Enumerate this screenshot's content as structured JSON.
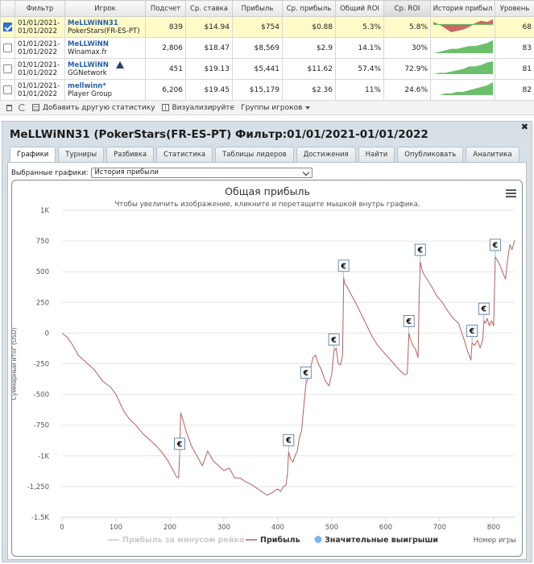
{
  "stats": {
    "headers": [
      "",
      "Фильтр",
      "Игрок",
      "Подсчет",
      "Ср. ставка",
      "Прибыль",
      "Ср. прибыль",
      "Общий ROI",
      "Ср. ROI",
      "История прибыл",
      "Уровень"
    ],
    "rows": [
      {
        "checked": true,
        "filter1": "01/01/2021-",
        "filter2": "01/01/2022",
        "name": "MeLLWiNN31",
        "site": "PokerStars(FR-ES-PT)",
        "count": "839",
        "avg_stake": "$14.94",
        "profit": "$754",
        "avg_profit": "$0.88",
        "total_roi": "5.3%",
        "avg_roi": "5.8%",
        "level": "68"
      },
      {
        "checked": false,
        "filter1": "01/01/2021-",
        "filter2": "01/01/2022",
        "name": "MeLLWiNN",
        "site": "Winamax.fr",
        "count": "2,806",
        "avg_stake": "$18.47",
        "profit": "$8,569",
        "avg_profit": "$2.9",
        "total_roi": "14.1%",
        "avg_roi": "30%",
        "level": "83"
      },
      {
        "checked": false,
        "filter1": "01/01/2021-",
        "filter2": "01/01/2022",
        "name": "MeLLWiNN",
        "site": "GGNetwork",
        "count": "451",
        "avg_stake": "$19.13",
        "profit": "$5,441",
        "avg_profit": "$11.62",
        "total_roi": "57.4%",
        "avg_roi": "72.9%",
        "level": "81"
      },
      {
        "checked": false,
        "filter1": "01/01/2021-",
        "filter2": "01/01/2022",
        "name": "mellwinn*",
        "site": "Player Group",
        "count": "6,206",
        "avg_stake": "$19.45",
        "profit": "$15,179",
        "avg_profit": "$2.36",
        "total_roi": "11%",
        "avg_roi": "24.6%",
        "level": "82"
      }
    ]
  },
  "toolbar": {
    "add_stat": "Добавить другую статистику",
    "visualize": "Визуализируйте",
    "groups": "Группы игроков"
  },
  "panel": {
    "title": "MeLLWiNN31 (PokerStars(FR-ES-PT) Фильтр:01/01/2021-01/01/2022",
    "tabs": [
      "Графики",
      "Турниры",
      "Разбивка",
      "Статистика",
      "Таблицы лидеров",
      "Достижения",
      "Найти",
      "Опубликовать",
      "Аналитика"
    ],
    "selected_label": "Выбранные графики:",
    "selected_value": "История прибыли"
  },
  "colors": {
    "profit_line": "#b26060",
    "rake_line": "#cccccc",
    "big_win_marker": "#7cb5ec",
    "spark_fill": "#5cb85c",
    "spark_neg": "#c45a5a"
  },
  "chart_data": {
    "type": "line",
    "title": "Общая прибыль",
    "subtitle": "Чтобы увеличить изображение, кликните и перетащите мышкой внутрь графика.",
    "xlabel": "Номер игры",
    "ylabel": "Суммарный итог (USD)",
    "xlim": [
      0,
      839
    ],
    "ylim": [
      -1500,
      1000
    ],
    "x_ticks": [
      "0",
      "100",
      "200",
      "300",
      "400",
      "500",
      "600",
      "700",
      "800"
    ],
    "y_ticks": [
      "1K",
      "750",
      "500",
      "250",
      "0",
      "-250",
      "-500",
      "-750",
      "-1K",
      "-1,250",
      "-1.5K"
    ],
    "legend": [
      "Прибыль за минусом рейка",
      "Прибыль",
      "Значительные выигрыши"
    ],
    "legend_position": "bottom",
    "grid": true,
    "big_win_marker_label": "€",
    "series": [
      {
        "name": "Прибыль",
        "points": [
          [
            0,
            0
          ],
          [
            10,
            -35
          ],
          [
            20,
            -100
          ],
          [
            30,
            -180
          ],
          [
            40,
            -220
          ],
          [
            50,
            -260
          ],
          [
            60,
            -300
          ],
          [
            75,
            -390
          ],
          [
            90,
            -440
          ],
          [
            100,
            -500
          ],
          [
            115,
            -640
          ],
          [
            125,
            -700
          ],
          [
            135,
            -740
          ],
          [
            150,
            -820
          ],
          [
            165,
            -880
          ],
          [
            175,
            -920
          ],
          [
            185,
            -970
          ],
          [
            195,
            -1030
          ],
          [
            205,
            -1110
          ],
          [
            212,
            -1170
          ],
          [
            216,
            -1180
          ],
          [
            218,
            -1000
          ],
          [
            220,
            -650
          ],
          [
            225,
            -720
          ],
          [
            230,
            -800
          ],
          [
            240,
            -920
          ],
          [
            250,
            -1000
          ],
          [
            260,
            -1080
          ],
          [
            270,
            -960
          ],
          [
            280,
            -1040
          ],
          [
            290,
            -1080
          ],
          [
            300,
            -1120
          ],
          [
            310,
            -1100
          ],
          [
            320,
            -1180
          ],
          [
            330,
            -1180
          ],
          [
            340,
            -1210
          ],
          [
            350,
            -1230
          ],
          [
            360,
            -1260
          ],
          [
            370,
            -1290
          ],
          [
            380,
            -1320
          ],
          [
            390,
            -1300
          ],
          [
            395,
            -1280
          ],
          [
            400,
            -1270
          ],
          [
            405,
            -1290
          ],
          [
            410,
            -1250
          ],
          [
            415,
            -1240
          ],
          [
            418,
            -1140
          ],
          [
            420,
            -970
          ],
          [
            424,
            -1030
          ],
          [
            428,
            -1050
          ],
          [
            432,
            -1000
          ],
          [
            436,
            -960
          ],
          [
            440,
            -850
          ],
          [
            444,
            -800
          ],
          [
            448,
            -600
          ],
          [
            452,
            -420
          ],
          [
            456,
            -360
          ],
          [
            460,
            -300
          ],
          [
            465,
            -200
          ],
          [
            470,
            -180
          ],
          [
            475,
            -250
          ],
          [
            480,
            -290
          ],
          [
            488,
            -390
          ],
          [
            495,
            -430
          ],
          [
            500,
            -330
          ],
          [
            504,
            -150
          ],
          [
            508,
            -120
          ],
          [
            512,
            -250
          ],
          [
            516,
            -260
          ],
          [
            520,
            -180
          ],
          [
            522,
            450
          ],
          [
            524,
            400
          ],
          [
            528,
            380
          ],
          [
            535,
            320
          ],
          [
            545,
            240
          ],
          [
            555,
            150
          ],
          [
            565,
            60
          ],
          [
            575,
            -30
          ],
          [
            585,
            -100
          ],
          [
            595,
            -150
          ],
          [
            605,
            -200
          ],
          [
            615,
            -250
          ],
          [
            625,
            -300
          ],
          [
            635,
            -340
          ],
          [
            640,
            -330
          ],
          [
            643,
            0
          ],
          [
            646,
            -50
          ],
          [
            650,
            -100
          ],
          [
            655,
            -130
          ],
          [
            660,
            -200
          ],
          [
            662,
            300
          ],
          [
            664,
            580
          ],
          [
            668,
            500
          ],
          [
            675,
            450
          ],
          [
            685,
            380
          ],
          [
            695,
            300
          ],
          [
            705,
            250
          ],
          [
            715,
            180
          ],
          [
            725,
            120
          ],
          [
            735,
            80
          ],
          [
            745,
            -50
          ],
          [
            752,
            -150
          ],
          [
            758,
            -220
          ],
          [
            760,
            -80
          ],
          [
            765,
            -100
          ],
          [
            770,
            -60
          ],
          [
            775,
            -120
          ],
          [
            780,
            -50
          ],
          [
            782,
            100
          ],
          [
            785,
            80
          ],
          [
            788,
            120
          ],
          [
            792,
            60
          ],
          [
            796,
            100
          ],
          [
            800,
            60
          ],
          [
            803,
            620
          ],
          [
            806,
            600
          ],
          [
            812,
            550
          ],
          [
            818,
            480
          ],
          [
            822,
            440
          ],
          [
            826,
            600
          ],
          [
            830,
            720
          ],
          [
            834,
            680
          ],
          [
            839,
            754
          ]
        ]
      },
      {
        "name": "Прибыль за минусом рейка",
        "points": []
      }
    ],
    "big_wins": [
      [
        218,
        -1000
      ],
      [
        420,
        -970
      ],
      [
        452,
        -420
      ],
      [
        504,
        -150
      ],
      [
        522,
        450
      ],
      [
        643,
        0
      ],
      [
        664,
        580
      ],
      [
        760,
        -80
      ],
      [
        782,
        100
      ],
      [
        803,
        620
      ]
    ]
  }
}
